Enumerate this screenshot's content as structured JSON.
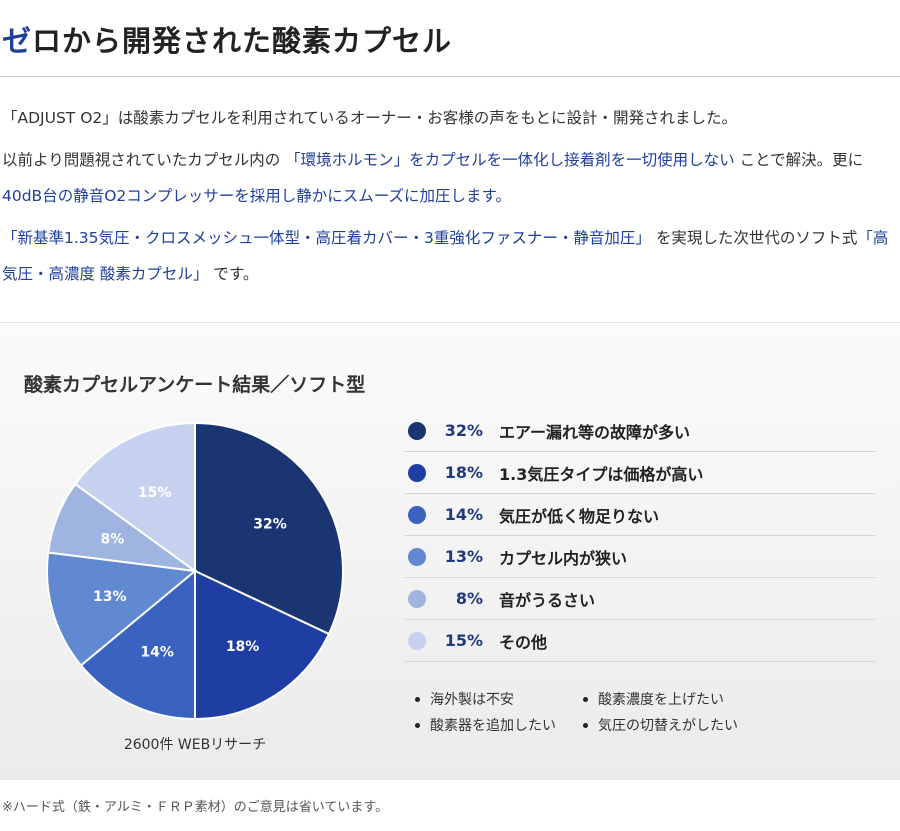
{
  "header": {
    "title_accent": "ゼ",
    "title_rest": "ロから開発された酸素カプセル"
  },
  "intro": {
    "p1": "「ADJUST O2」は酸素カプセルを利用されているオーナー・お客様の声をもとに設計・開発されました。",
    "p2_a": "以前より問題視されていたカプセル内の",
    "p2_b": "「環境ホルモン」をカプセルを一体化し接着剤を一切使用しない",
    "p2_c": "ことで解決。更に",
    "p2_d": "40dB台の静音O2コンプレッサーを採用し静かにスムーズに加圧します。",
    "p3_a": "「新基準1.35気圧・クロスメッシュ一体型・高圧着カバー・3重強化ファスナー・静音加圧」",
    "p3_b": "を実現した次世代のソフト式",
    "p3_c": "「高気圧・高濃度 酸素カプセル」",
    "p3_d": "です。"
  },
  "chart_data": {
    "type": "pie",
    "title": "酸素カプセルアンケート結果／ソフト型",
    "caption": "2600件 WEBリサーチ",
    "unit": "%",
    "slices": [
      {
        "label": "エアー漏れ等の故障が多い",
        "value": 32,
        "pct_text": "32%",
        "color": "#1a3572"
      },
      {
        "label": "1.3気圧タイプは価格が高い",
        "value": 18,
        "pct_text": "18%",
        "color": "#1f3ea3"
      },
      {
        "label": "気圧が低く物足りない",
        "value": 14,
        "pct_text": "14%",
        "color": "#3a63c0"
      },
      {
        "label": "カプセル内が狭い",
        "value": 13,
        "pct_text": "13%",
        "color": "#6189d1"
      },
      {
        "label": "音がうるさい",
        "value": 8,
        "pct_text": "8%",
        "color": "#9fb4e0"
      },
      {
        "label": "その他",
        "value": 15,
        "pct_text": "15%",
        "color": "#c5d1ee"
      }
    ]
  },
  "others": [
    "海外製は不安",
    "酸素濃度を上げたい",
    "酸素器を追加したい",
    "気圧の切替えがしたい"
  ],
  "footnote": "※ハード式（鉄・アルミ・ＦＲＰ素材）のご意見は省いています。"
}
